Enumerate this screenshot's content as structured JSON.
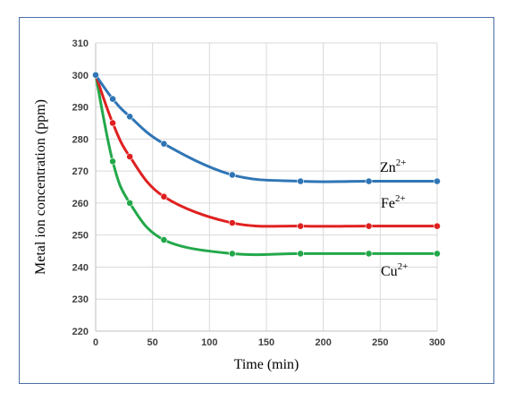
{
  "chart_data": {
    "type": "line",
    "title": "",
    "xlabel": "Time (min)",
    "ylabel": "Metal ion concentration (ppm)",
    "xlim": [
      0,
      300
    ],
    "ylim": [
      220,
      310
    ],
    "xticks": [
      "0",
      "50",
      "100",
      "150",
      "200",
      "250",
      "300"
    ],
    "yticks": [
      "220",
      "230",
      "240",
      "250",
      "260",
      "270",
      "280",
      "290",
      "300",
      "310"
    ],
    "grid": true,
    "legend": "none",
    "series": [
      {
        "name": "Zn",
        "charge": "2+",
        "color": "#2f75b5",
        "x": [
          0,
          15,
          30,
          60,
          120,
          180,
          240,
          300
        ],
        "y": [
          300,
          292.5,
          287,
          278.5,
          268.8,
          266.8,
          266.8,
          266.8
        ]
      },
      {
        "name": "Fe",
        "charge": "2+",
        "color": "#e02020",
        "x": [
          0,
          15,
          30,
          60,
          120,
          180,
          240,
          300
        ],
        "y": [
          300,
          285,
          274.5,
          262,
          253.8,
          252.8,
          252.8,
          252.8
        ]
      },
      {
        "name": "Cu",
        "charge": "2+",
        "color": "#22a84a",
        "x": [
          0,
          15,
          30,
          60,
          120,
          180,
          240,
          300
        ],
        "y": [
          300,
          273,
          260,
          248.5,
          244.2,
          244.2,
          244.2,
          244.2
        ]
      }
    ]
  }
}
